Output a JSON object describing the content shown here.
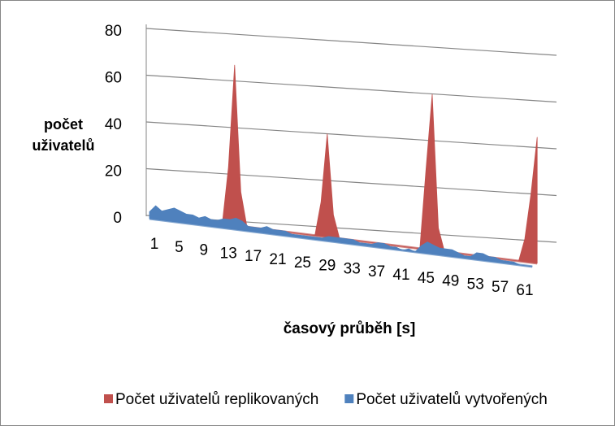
{
  "chart_data": {
    "type": "area3d",
    "y_label": "počet uživatelů",
    "x_label": "časový průběh [s]",
    "categories": [
      1,
      null,
      null,
      null,
      5,
      null,
      null,
      null,
      9,
      null,
      null,
      null,
      13,
      null,
      null,
      null,
      17,
      null,
      null,
      null,
      21,
      null,
      null,
      null,
      25,
      null,
      null,
      null,
      29,
      null,
      null,
      null,
      33,
      null,
      null,
      null,
      37,
      null,
      null,
      null,
      41,
      null,
      null,
      null,
      45,
      null,
      null,
      null,
      49,
      null,
      null,
      null,
      53,
      null,
      null,
      null,
      57,
      null,
      null,
      null,
      61,
      null,
      null
    ],
    "ylim": [
      0,
      80
    ],
    "yticks": [
      0,
      20,
      40,
      60,
      80
    ],
    "grid": true,
    "legend": "bottom",
    "series": [
      {
        "name": "Počet uživatelů replikovaných",
        "color": "#c0504d",
        "values": [
          0,
          0,
          0,
          0,
          0,
          0,
          0,
          0,
          0,
          0,
          0,
          0,
          25,
          70,
          15,
          0,
          0,
          0,
          0,
          0,
          0,
          0,
          0,
          0,
          0,
          0,
          0,
          15,
          45,
          10,
          0,
          0,
          0,
          0,
          0,
          0,
          0,
          0,
          0,
          0,
          0,
          0,
          0,
          0,
          35,
          68,
          10,
          0,
          0,
          0,
          0,
          0,
          0,
          0,
          0,
          0,
          0,
          0,
          0,
          0,
          10,
          30,
          55
        ]
      },
      {
        "name": "Počet uživatelů vytvořených",
        "color": "#4f81bd",
        "values": [
          3,
          6,
          4,
          5,
          6,
          5,
          4,
          4,
          3,
          4,
          3,
          3,
          4,
          4,
          5,
          4,
          2,
          2,
          2,
          3,
          2,
          2,
          2,
          1,
          1,
          1,
          1,
          1,
          1,
          2,
          2,
          2,
          2,
          2,
          1,
          1,
          1,
          2,
          2,
          1,
          1,
          0,
          1,
          0,
          3,
          5,
          4,
          3,
          3,
          3,
          2,
          1,
          1,
          3,
          3,
          2,
          2,
          1,
          1,
          1,
          0,
          0,
          0
        ]
      }
    ]
  }
}
